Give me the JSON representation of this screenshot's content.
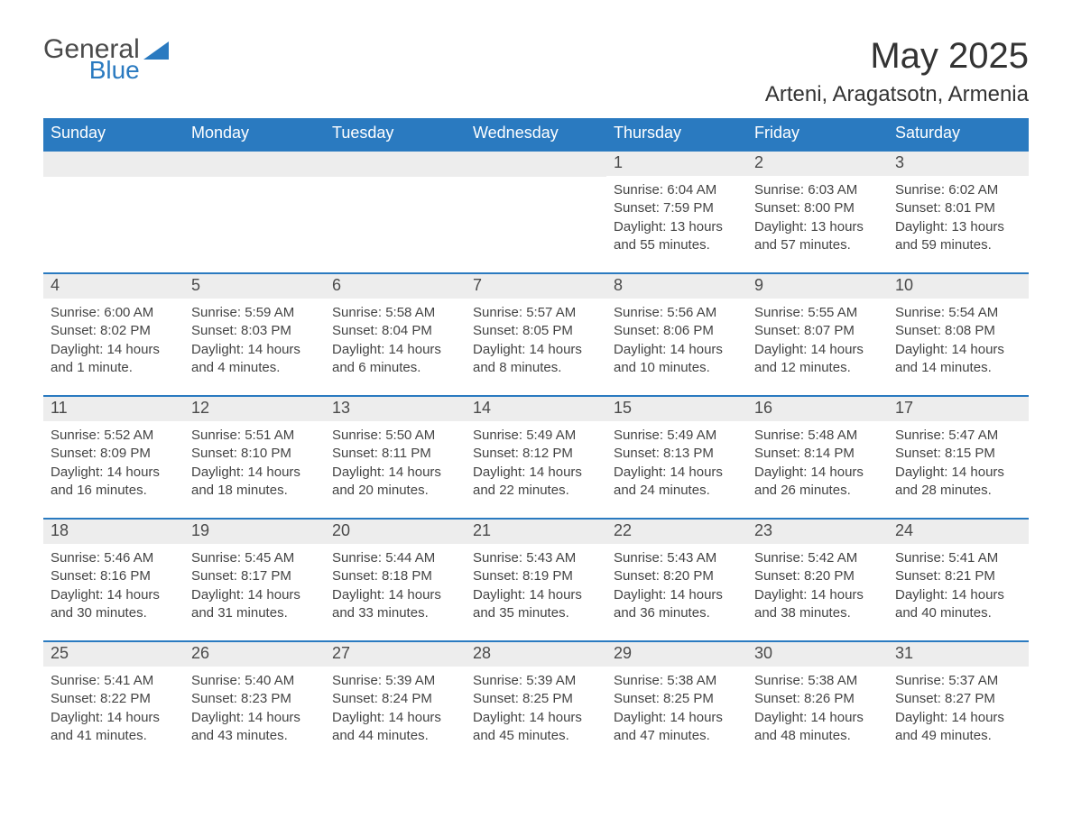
{
  "logo": {
    "word1": "General",
    "word2": "Blue"
  },
  "colors": {
    "brand_blue": "#2a7ac0",
    "header_text": "#333333",
    "day_bg": "#ededed",
    "body_text": "#444444",
    "white": "#ffffff"
  },
  "title": "May 2025",
  "location": "Arteni, Aragatsotn, Armenia",
  "weekdays": [
    "Sunday",
    "Monday",
    "Tuesday",
    "Wednesday",
    "Thursday",
    "Friday",
    "Saturday"
  ],
  "weeks": [
    [
      null,
      null,
      null,
      null,
      {
        "n": "1",
        "sunrise": "Sunrise: 6:04 AM",
        "sunset": "Sunset: 7:59 PM",
        "daylight1": "Daylight: 13 hours",
        "daylight2": "and 55 minutes."
      },
      {
        "n": "2",
        "sunrise": "Sunrise: 6:03 AM",
        "sunset": "Sunset: 8:00 PM",
        "daylight1": "Daylight: 13 hours",
        "daylight2": "and 57 minutes."
      },
      {
        "n": "3",
        "sunrise": "Sunrise: 6:02 AM",
        "sunset": "Sunset: 8:01 PM",
        "daylight1": "Daylight: 13 hours",
        "daylight2": "and 59 minutes."
      }
    ],
    [
      {
        "n": "4",
        "sunrise": "Sunrise: 6:00 AM",
        "sunset": "Sunset: 8:02 PM",
        "daylight1": "Daylight: 14 hours",
        "daylight2": "and 1 minute."
      },
      {
        "n": "5",
        "sunrise": "Sunrise: 5:59 AM",
        "sunset": "Sunset: 8:03 PM",
        "daylight1": "Daylight: 14 hours",
        "daylight2": "and 4 minutes."
      },
      {
        "n": "6",
        "sunrise": "Sunrise: 5:58 AM",
        "sunset": "Sunset: 8:04 PM",
        "daylight1": "Daylight: 14 hours",
        "daylight2": "and 6 minutes."
      },
      {
        "n": "7",
        "sunrise": "Sunrise: 5:57 AM",
        "sunset": "Sunset: 8:05 PM",
        "daylight1": "Daylight: 14 hours",
        "daylight2": "and 8 minutes."
      },
      {
        "n": "8",
        "sunrise": "Sunrise: 5:56 AM",
        "sunset": "Sunset: 8:06 PM",
        "daylight1": "Daylight: 14 hours",
        "daylight2": "and 10 minutes."
      },
      {
        "n": "9",
        "sunrise": "Sunrise: 5:55 AM",
        "sunset": "Sunset: 8:07 PM",
        "daylight1": "Daylight: 14 hours",
        "daylight2": "and 12 minutes."
      },
      {
        "n": "10",
        "sunrise": "Sunrise: 5:54 AM",
        "sunset": "Sunset: 8:08 PM",
        "daylight1": "Daylight: 14 hours",
        "daylight2": "and 14 minutes."
      }
    ],
    [
      {
        "n": "11",
        "sunrise": "Sunrise: 5:52 AM",
        "sunset": "Sunset: 8:09 PM",
        "daylight1": "Daylight: 14 hours",
        "daylight2": "and 16 minutes."
      },
      {
        "n": "12",
        "sunrise": "Sunrise: 5:51 AM",
        "sunset": "Sunset: 8:10 PM",
        "daylight1": "Daylight: 14 hours",
        "daylight2": "and 18 minutes."
      },
      {
        "n": "13",
        "sunrise": "Sunrise: 5:50 AM",
        "sunset": "Sunset: 8:11 PM",
        "daylight1": "Daylight: 14 hours",
        "daylight2": "and 20 minutes."
      },
      {
        "n": "14",
        "sunrise": "Sunrise: 5:49 AM",
        "sunset": "Sunset: 8:12 PM",
        "daylight1": "Daylight: 14 hours",
        "daylight2": "and 22 minutes."
      },
      {
        "n": "15",
        "sunrise": "Sunrise: 5:49 AM",
        "sunset": "Sunset: 8:13 PM",
        "daylight1": "Daylight: 14 hours",
        "daylight2": "and 24 minutes."
      },
      {
        "n": "16",
        "sunrise": "Sunrise: 5:48 AM",
        "sunset": "Sunset: 8:14 PM",
        "daylight1": "Daylight: 14 hours",
        "daylight2": "and 26 minutes."
      },
      {
        "n": "17",
        "sunrise": "Sunrise: 5:47 AM",
        "sunset": "Sunset: 8:15 PM",
        "daylight1": "Daylight: 14 hours",
        "daylight2": "and 28 minutes."
      }
    ],
    [
      {
        "n": "18",
        "sunrise": "Sunrise: 5:46 AM",
        "sunset": "Sunset: 8:16 PM",
        "daylight1": "Daylight: 14 hours",
        "daylight2": "and 30 minutes."
      },
      {
        "n": "19",
        "sunrise": "Sunrise: 5:45 AM",
        "sunset": "Sunset: 8:17 PM",
        "daylight1": "Daylight: 14 hours",
        "daylight2": "and 31 minutes."
      },
      {
        "n": "20",
        "sunrise": "Sunrise: 5:44 AM",
        "sunset": "Sunset: 8:18 PM",
        "daylight1": "Daylight: 14 hours",
        "daylight2": "and 33 minutes."
      },
      {
        "n": "21",
        "sunrise": "Sunrise: 5:43 AM",
        "sunset": "Sunset: 8:19 PM",
        "daylight1": "Daylight: 14 hours",
        "daylight2": "and 35 minutes."
      },
      {
        "n": "22",
        "sunrise": "Sunrise: 5:43 AM",
        "sunset": "Sunset: 8:20 PM",
        "daylight1": "Daylight: 14 hours",
        "daylight2": "and 36 minutes."
      },
      {
        "n": "23",
        "sunrise": "Sunrise: 5:42 AM",
        "sunset": "Sunset: 8:20 PM",
        "daylight1": "Daylight: 14 hours",
        "daylight2": "and 38 minutes."
      },
      {
        "n": "24",
        "sunrise": "Sunrise: 5:41 AM",
        "sunset": "Sunset: 8:21 PM",
        "daylight1": "Daylight: 14 hours",
        "daylight2": "and 40 minutes."
      }
    ],
    [
      {
        "n": "25",
        "sunrise": "Sunrise: 5:41 AM",
        "sunset": "Sunset: 8:22 PM",
        "daylight1": "Daylight: 14 hours",
        "daylight2": "and 41 minutes."
      },
      {
        "n": "26",
        "sunrise": "Sunrise: 5:40 AM",
        "sunset": "Sunset: 8:23 PM",
        "daylight1": "Daylight: 14 hours",
        "daylight2": "and 43 minutes."
      },
      {
        "n": "27",
        "sunrise": "Sunrise: 5:39 AM",
        "sunset": "Sunset: 8:24 PM",
        "daylight1": "Daylight: 14 hours",
        "daylight2": "and 44 minutes."
      },
      {
        "n": "28",
        "sunrise": "Sunrise: 5:39 AM",
        "sunset": "Sunset: 8:25 PM",
        "daylight1": "Daylight: 14 hours",
        "daylight2": "and 45 minutes."
      },
      {
        "n": "29",
        "sunrise": "Sunrise: 5:38 AM",
        "sunset": "Sunset: 8:25 PM",
        "daylight1": "Daylight: 14 hours",
        "daylight2": "and 47 minutes."
      },
      {
        "n": "30",
        "sunrise": "Sunrise: 5:38 AM",
        "sunset": "Sunset: 8:26 PM",
        "daylight1": "Daylight: 14 hours",
        "daylight2": "and 48 minutes."
      },
      {
        "n": "31",
        "sunrise": "Sunrise: 5:37 AM",
        "sunset": "Sunset: 8:27 PM",
        "daylight1": "Daylight: 14 hours",
        "daylight2": "and 49 minutes."
      }
    ]
  ]
}
